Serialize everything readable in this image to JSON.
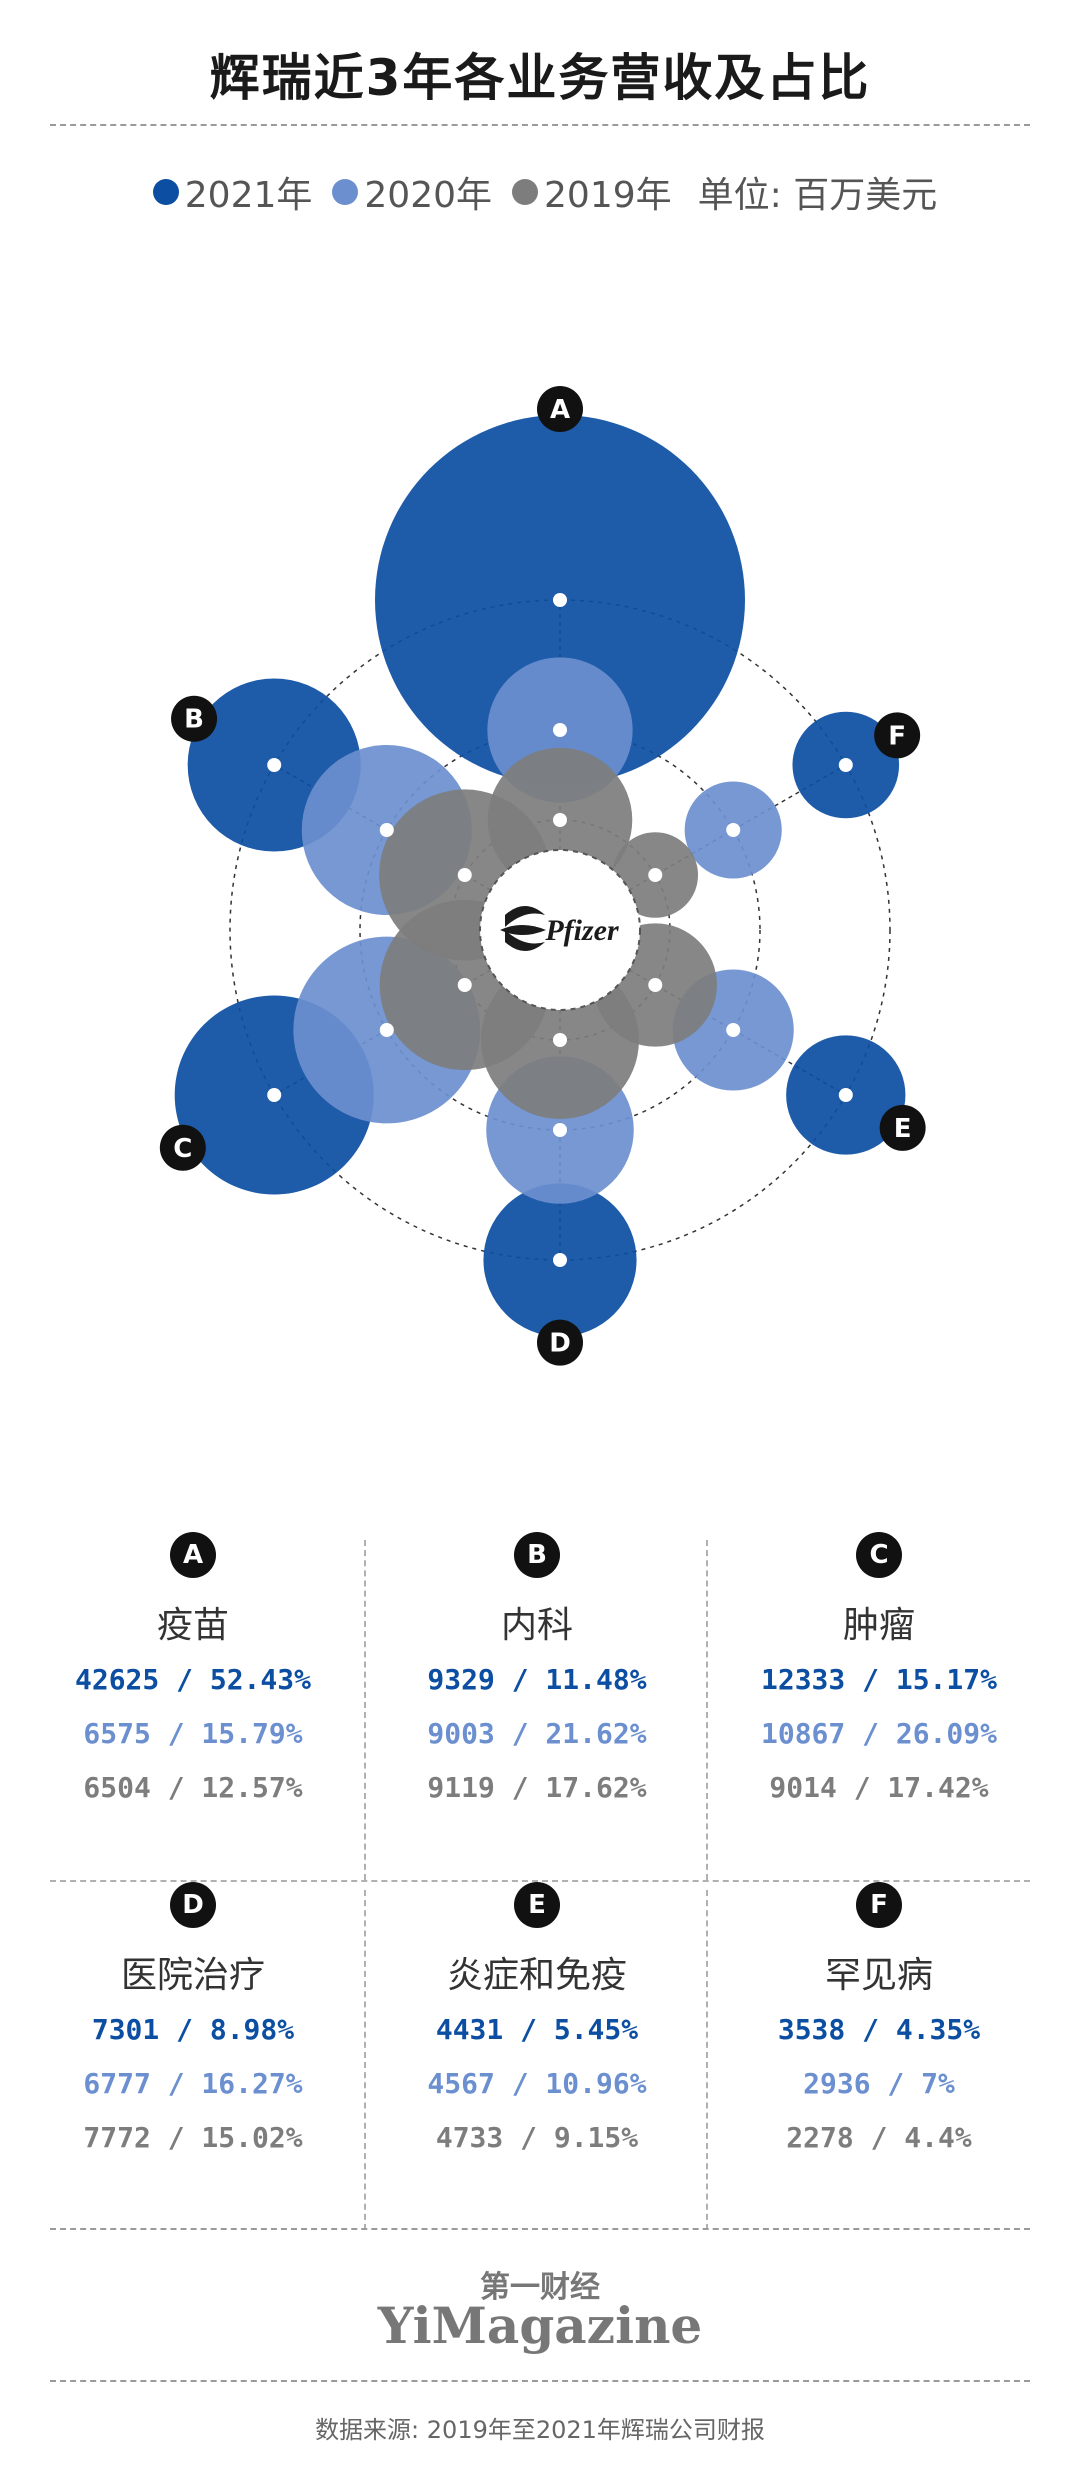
{
  "title": "辉瑞近3年各业务营收及占比",
  "legend": {
    "items": [
      {
        "label": "2021年",
        "color": "#0b4ea2"
      },
      {
        "label": "2020年",
        "color": "#6b8fcf"
      },
      {
        "label": "2019年",
        "color": "#7d7d7d"
      }
    ],
    "unit": "单位: 百万美元"
  },
  "center_logo": "Pfizer",
  "chart_data": {
    "type": "bubble-radial",
    "unit": "百万美元",
    "years": [
      "2021年",
      "2020年",
      "2019年"
    ],
    "colors": {
      "2021年": "#0b4ea2",
      "2020年": "#6b8fcf",
      "2019年": "#7d7d7d"
    },
    "categories": [
      {
        "letter": "A",
        "name": "疫苗",
        "values": [
          42625,
          6575,
          6504
        ],
        "shares": [
          "52.43%",
          "15.79%",
          "12.57%"
        ]
      },
      {
        "letter": "B",
        "name": "内科",
        "values": [
          9329,
          9003,
          9119
        ],
        "shares": [
          "11.48%",
          "21.62%",
          "17.62%"
        ]
      },
      {
        "letter": "C",
        "name": "肿瘤",
        "values": [
          12333,
          10867,
          9014
        ],
        "shares": [
          "15.17%",
          "26.09%",
          "17.42%"
        ]
      },
      {
        "letter": "D",
        "name": "医院治疗",
        "values": [
          7301,
          6777,
          7772
        ],
        "shares": [
          "8.98%",
          "16.27%",
          "15.02%"
        ]
      },
      {
        "letter": "E",
        "name": "炎症和免疫",
        "values": [
          4431,
          4567,
          4733
        ],
        "shares": [
          "5.45%",
          "10.96%",
          "9.15%"
        ]
      },
      {
        "letter": "F",
        "name": "罕见病",
        "values": [
          3538,
          2936,
          2278
        ],
        "shares": [
          "4.35%",
          "7%",
          "4.4%"
        ]
      }
    ]
  },
  "brand": {
    "cn": "第一财经",
    "en": "YiMagazine"
  },
  "source": "数据来源: 2019年至2021年辉瑞公司财报"
}
